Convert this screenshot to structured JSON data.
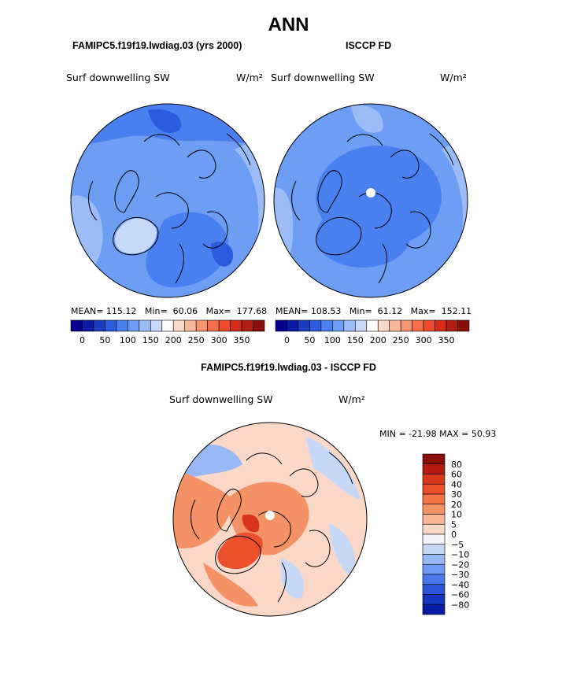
{
  "title": "ANN",
  "panels": [
    {
      "case": "FAMIPC5.f19f19.lwdiag.03 (yrs 2000)",
      "variable": "Surf downwelling SW",
      "units": "W/m²",
      "stats": {
        "mean": "115.12",
        "min": "60.06",
        "max": "177.68",
        "mean_label": "MEAN=",
        "min_label": "Min=",
        "max_label": "Max="
      }
    },
    {
      "case": "ISCCP FD",
      "variable": "Surf downwelling SW",
      "units": "W/m²",
      "stats": {
        "mean": "108.53",
        "min": "61.12",
        "max": "152.11",
        "mean_label": "MEAN=",
        "min_label": "Min=",
        "max_label": "Max="
      }
    },
    {
      "case": "FAMIPC5.f19f19.lwdiag.03 - ISCCP FD",
      "variable": "Surf downwelling SW",
      "units": "W/m²",
      "stats_text": "MIN = -21.98 MAX =  50.93"
    }
  ],
  "abs_colorbar": {
    "labels": [
      "0",
      "50",
      "100",
      "150",
      "200",
      "250",
      "300",
      "350"
    ],
    "colors": [
      "#07008f",
      "#0b1aa5",
      "#1a3bc2",
      "#2d5be0",
      "#4a7ff0",
      "#6e9ef4",
      "#9bbcf6",
      "#c8d9f8",
      "#ffffff",
      "#fbd9c8",
      "#f8b99a",
      "#f5956f",
      "#f2704a",
      "#ee4b2a",
      "#d82c1b",
      "#b01d13",
      "#88100a"
    ]
  },
  "diff_colorbar": {
    "labels": [
      "80",
      "60",
      "40",
      "30",
      "20",
      "10",
      "5",
      "0",
      "-5",
      "-10",
      "-20",
      "-30",
      "-40",
      "-60",
      "-80"
    ],
    "colors": [
      "#8b0d06",
      "#b31b0f",
      "#d8351a",
      "#ec4f2b",
      "#f27246",
      "#f49266",
      "#f7b595",
      "#fbd8c7",
      "#f2f4fa",
      "#c7d8f7",
      "#98b8f5",
      "#6f99f2",
      "#4a78ec",
      "#2a55db",
      "#1433c0",
      "#071aa3"
    ]
  },
  "map_colors": {
    "ocean_light": "#9bbcf6",
    "mid": "#6e9ef4",
    "dark": "#4a7ff0",
    "darker": "#2d5be0",
    "pale": "#c8d9f8",
    "diff_base": "#fbd8c7",
    "diff_warm": "#f49266",
    "diff_hot": "#ec4f2b",
    "diff_cool": "#c7d8f7",
    "diff_blue": "#98b8f5"
  }
}
